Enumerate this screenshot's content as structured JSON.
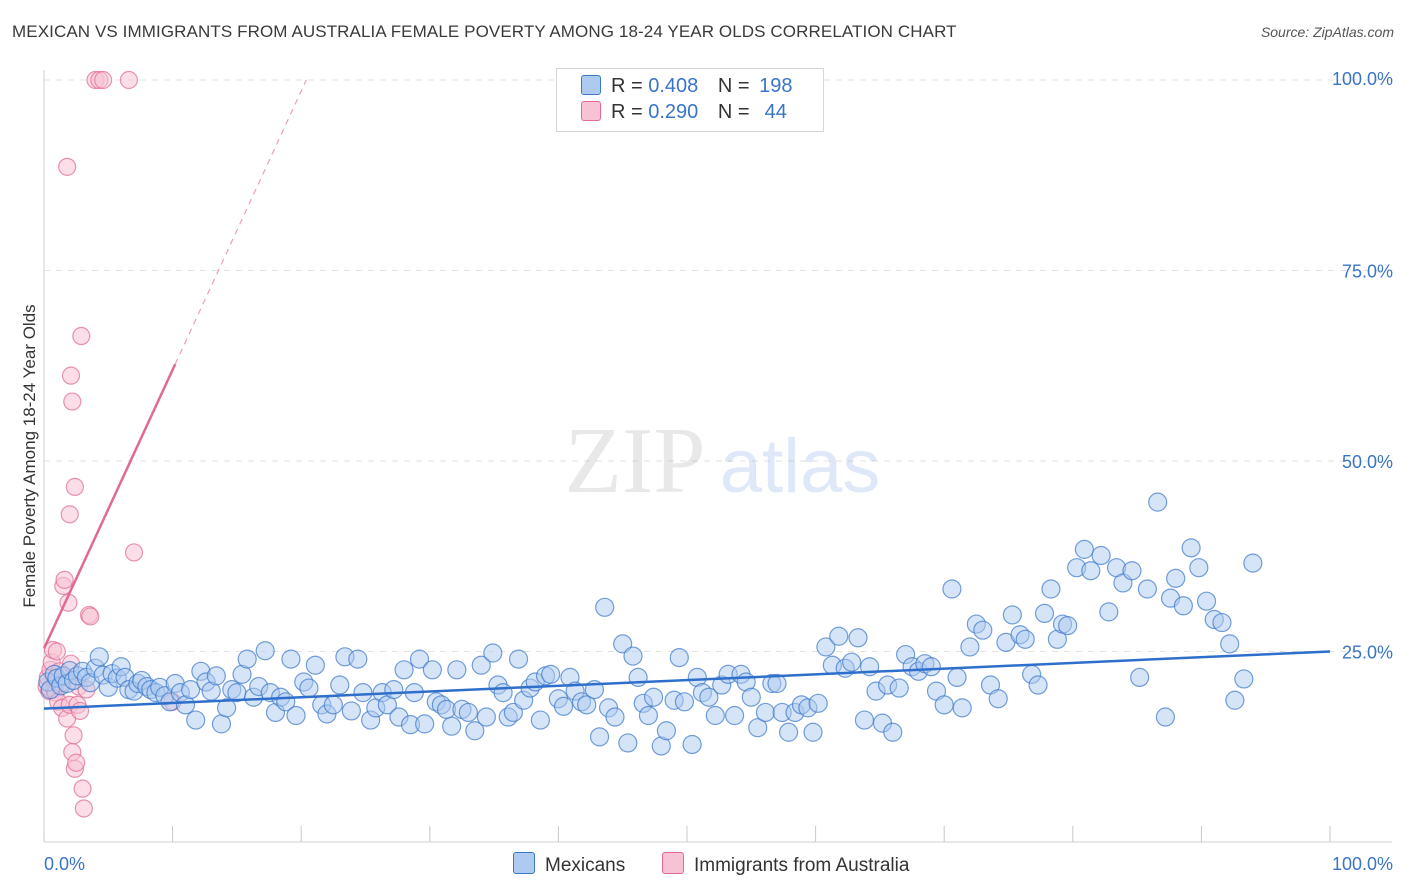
{
  "header": {
    "title": "MEXICAN VS IMMIGRANTS FROM AUSTRALIA FEMALE POVERTY AMONG 18-24 YEAR OLDS CORRELATION CHART",
    "source": "Source: ZipAtlas.com"
  },
  "watermark": {
    "zip": "ZIP",
    "atlas": "atlas"
  },
  "legend": {
    "mexicans": {
      "r_label": "R =",
      "r_value": "0.408",
      "n_label": "N =",
      "n_value": "198"
    },
    "australia": {
      "r_label": "R =",
      "r_value": "0.290",
      "n_label": "N =",
      "n_value": " 44"
    }
  },
  "bottom_legend": {
    "mexicans": "Mexicans",
    "australia": "Immigrants from Australia"
  },
  "colors": {
    "blue": "#3a78c9",
    "blue_fill": "#aecaf0",
    "pink": "#e06a93",
    "pink_fill": "#f7c2d3",
    "tick_text": "#3a74c9"
  },
  "chart_data": {
    "type": "scatter",
    "title": "MEXICAN VS IMMIGRANTS FROM AUSTRALIA FEMALE POVERTY AMONG 18-24 YEAR OLDS CORRELATION CHART",
    "xlabel": "",
    "ylabel": "Female Poverty Among 18-24 Year Olds",
    "xlim": [
      0,
      100
    ],
    "ylim": [
      0,
      100
    ],
    "x_tick_labels": [
      "0.0%",
      "100.0%"
    ],
    "y_tick_labels": [
      "25.0%",
      "50.0%",
      "75.0%",
      "100.0%"
    ],
    "y_ticks": [
      25,
      50,
      75,
      100
    ],
    "series": [
      {
        "name": "Mexicans",
        "r": 0.408,
        "n": 198,
        "trend": {
          "x": [
            0,
            100
          ],
          "y": [
            17.5,
            25.0
          ],
          "dashed_from": null
        },
        "points": [
          [
            0.3,
            21.0
          ],
          [
            0.5,
            20.0
          ],
          [
            0.8,
            22.0
          ],
          [
            1.0,
            21.5
          ],
          [
            1.3,
            20.5
          ],
          [
            1.5,
            21.8
          ],
          [
            1.8,
            20.8
          ],
          [
            2.0,
            22.5
          ],
          [
            2.3,
            21.2
          ],
          [
            2.6,
            21.8
          ],
          [
            3.0,
            22.4
          ],
          [
            3.3,
            21.6
          ],
          [
            3.6,
            20.9
          ],
          [
            4.0,
            22.8
          ],
          [
            4.3,
            24.3
          ],
          [
            4.6,
            21.9
          ],
          [
            5.0,
            20.3
          ],
          [
            5.3,
            22.1
          ],
          [
            5.7,
            21.5
          ],
          [
            6.0,
            23.0
          ],
          [
            6.3,
            21.6
          ],
          [
            6.6,
            20.0
          ],
          [
            7.0,
            19.8
          ],
          [
            7.3,
            20.8
          ],
          [
            7.6,
            21.2
          ],
          [
            8.0,
            20.4
          ],
          [
            8.3,
            20.0
          ],
          [
            8.7,
            19.6
          ],
          [
            9.0,
            20.3
          ],
          [
            9.4,
            19.2
          ],
          [
            9.8,
            18.4
          ],
          [
            10.2,
            20.8
          ],
          [
            10.6,
            19.6
          ],
          [
            11.0,
            18.0
          ],
          [
            11.4,
            20.0
          ],
          [
            11.8,
            16.0
          ],
          [
            12.2,
            22.4
          ],
          [
            12.6,
            21.0
          ],
          [
            13.0,
            19.8
          ],
          [
            13.4,
            21.8
          ],
          [
            13.8,
            15.5
          ],
          [
            14.2,
            17.6
          ],
          [
            14.6,
            20.0
          ],
          [
            15.0,
            19.6
          ],
          [
            15.4,
            22.0
          ],
          [
            15.8,
            24.0
          ],
          [
            16.3,
            19.0
          ],
          [
            16.7,
            20.4
          ],
          [
            17.2,
            25.1
          ],
          [
            17.6,
            19.6
          ],
          [
            18.0,
            17.0
          ],
          [
            18.4,
            19.0
          ],
          [
            18.8,
            18.4
          ],
          [
            19.2,
            24.0
          ],
          [
            19.6,
            16.6
          ],
          [
            20.2,
            21.0
          ],
          [
            20.6,
            20.2
          ],
          [
            21.1,
            23.2
          ],
          [
            21.6,
            18.0
          ],
          [
            22.0,
            16.8
          ],
          [
            22.5,
            18.0
          ],
          [
            23.0,
            20.6
          ],
          [
            23.4,
            24.3
          ],
          [
            23.9,
            17.2
          ],
          [
            24.4,
            24.0
          ],
          [
            24.8,
            19.6
          ],
          [
            25.4,
            16.0
          ],
          [
            25.8,
            17.6
          ],
          [
            26.3,
            19.6
          ],
          [
            26.7,
            18.0
          ],
          [
            27.2,
            20.0
          ],
          [
            27.6,
            16.4
          ],
          [
            28.0,
            22.6
          ],
          [
            28.5,
            15.4
          ],
          [
            28.8,
            19.6
          ],
          [
            29.2,
            24.0
          ],
          [
            29.6,
            15.5
          ],
          [
            30.2,
            22.6
          ],
          [
            30.5,
            18.4
          ],
          [
            30.9,
            18.0
          ],
          [
            31.3,
            17.4
          ],
          [
            31.7,
            15.2
          ],
          [
            32.1,
            22.6
          ],
          [
            32.5,
            17.4
          ],
          [
            33.0,
            17.0
          ],
          [
            33.5,
            14.6
          ],
          [
            34.0,
            23.2
          ],
          [
            34.4,
            16.4
          ],
          [
            34.9,
            24.8
          ],
          [
            35.3,
            20.6
          ],
          [
            35.7,
            19.6
          ],
          [
            36.1,
            16.4
          ],
          [
            36.5,
            17.0
          ],
          [
            36.9,
            24.0
          ],
          [
            37.3,
            18.6
          ],
          [
            37.8,
            20.2
          ],
          [
            38.2,
            21.0
          ],
          [
            38.6,
            16.0
          ],
          [
            39.0,
            21.8
          ],
          [
            39.4,
            22.0
          ],
          [
            40.0,
            18.8
          ],
          [
            40.4,
            17.8
          ],
          [
            40.9,
            21.6
          ],
          [
            41.3,
            19.8
          ],
          [
            41.8,
            18.4
          ],
          [
            42.2,
            18.0
          ],
          [
            42.8,
            20.0
          ],
          [
            43.2,
            13.8
          ],
          [
            43.6,
            30.8
          ],
          [
            43.9,
            17.6
          ],
          [
            44.4,
            16.4
          ],
          [
            45.0,
            26.0
          ],
          [
            45.4,
            13.0
          ],
          [
            45.8,
            24.4
          ],
          [
            46.2,
            21.6
          ],
          [
            46.6,
            18.2
          ],
          [
            47.0,
            16.6
          ],
          [
            47.4,
            19.0
          ],
          [
            48.0,
            12.6
          ],
          [
            48.4,
            14.6
          ],
          [
            49.0,
            18.6
          ],
          [
            49.4,
            24.2
          ],
          [
            49.8,
            18.4
          ],
          [
            50.4,
            12.8
          ],
          [
            50.8,
            21.6
          ],
          [
            51.2,
            19.6
          ],
          [
            51.7,
            19.0
          ],
          [
            52.2,
            16.6
          ],
          [
            52.7,
            20.6
          ],
          [
            53.2,
            22.0
          ],
          [
            53.7,
            16.6
          ],
          [
            54.2,
            22.0
          ],
          [
            54.6,
            21.0
          ],
          [
            55.0,
            19.0
          ],
          [
            55.5,
            15.0
          ],
          [
            56.1,
            17.0
          ],
          [
            56.6,
            20.8
          ],
          [
            57.0,
            20.8
          ],
          [
            57.4,
            17.0
          ],
          [
            57.9,
            14.4
          ],
          [
            58.4,
            17.0
          ],
          [
            58.9,
            18.0
          ],
          [
            59.4,
            17.6
          ],
          [
            59.8,
            14.4
          ],
          [
            60.2,
            18.2
          ],
          [
            60.8,
            25.6
          ],
          [
            61.3,
            23.2
          ],
          [
            61.8,
            27.0
          ],
          [
            62.3,
            22.8
          ],
          [
            62.8,
            23.6
          ],
          [
            63.3,
            26.8
          ],
          [
            63.8,
            16.0
          ],
          [
            64.2,
            23.0
          ],
          [
            64.7,
            19.8
          ],
          [
            65.2,
            15.6
          ],
          [
            65.6,
            20.6
          ],
          [
            66.0,
            14.4
          ],
          [
            66.5,
            20.2
          ],
          [
            67.0,
            24.6
          ],
          [
            67.5,
            23.0
          ],
          [
            68.0,
            22.4
          ],
          [
            68.5,
            23.4
          ],
          [
            69.0,
            23.0
          ],
          [
            69.4,
            19.8
          ],
          [
            70.0,
            18.0
          ],
          [
            70.6,
            33.2
          ],
          [
            71.0,
            21.6
          ],
          [
            71.4,
            17.6
          ],
          [
            72.0,
            25.6
          ],
          [
            72.5,
            28.6
          ],
          [
            73.0,
            27.8
          ],
          [
            73.6,
            20.6
          ],
          [
            74.2,
            18.8
          ],
          [
            74.8,
            26.2
          ],
          [
            75.3,
            29.8
          ],
          [
            75.9,
            27.2
          ],
          [
            76.3,
            26.6
          ],
          [
            76.8,
            22.0
          ],
          [
            77.3,
            20.6
          ],
          [
            77.8,
            30.0
          ],
          [
            78.3,
            33.2
          ],
          [
            78.8,
            26.6
          ],
          [
            79.2,
            28.6
          ],
          [
            79.6,
            28.4
          ],
          [
            80.3,
            36.0
          ],
          [
            80.9,
            38.4
          ],
          [
            81.4,
            35.6
          ],
          [
            82.2,
            37.6
          ],
          [
            82.8,
            30.2
          ],
          [
            83.4,
            36.0
          ],
          [
            83.9,
            34.0
          ],
          [
            84.6,
            35.6
          ],
          [
            85.2,
            21.6
          ],
          [
            85.8,
            33.2
          ],
          [
            86.6,
            44.6
          ],
          [
            87.2,
            16.4
          ],
          [
            87.6,
            32.0
          ],
          [
            88.0,
            34.6
          ],
          [
            88.6,
            31.0
          ],
          [
            89.2,
            38.6
          ],
          [
            89.8,
            36.0
          ],
          [
            90.4,
            31.6
          ],
          [
            91.0,
            29.2
          ],
          [
            91.6,
            28.8
          ],
          [
            92.2,
            26.0
          ],
          [
            92.6,
            18.6
          ],
          [
            93.3,
            21.4
          ],
          [
            94.0,
            36.6
          ]
        ]
      },
      {
        "name": "Immigrants from Australia",
        "r": 0.29,
        "n": 44,
        "trend": {
          "x": [
            0,
            20.4
          ],
          "y": [
            25.4,
            100.0
          ],
          "solid_until_x": 10.2
        },
        "points": [
          [
            0.2,
            20.4
          ],
          [
            0.3,
            21.6
          ],
          [
            0.4,
            19.8
          ],
          [
            0.5,
            22.6
          ],
          [
            0.6,
            23.6
          ],
          [
            0.7,
            25.2
          ],
          [
            0.8,
            20.0
          ],
          [
            0.9,
            19.6
          ],
          [
            1.0,
            21.0
          ],
          [
            1.1,
            18.4
          ],
          [
            1.2,
            22.4
          ],
          [
            1.3,
            20.8
          ],
          [
            1.4,
            17.6
          ],
          [
            1.5,
            33.6
          ],
          [
            1.6,
            34.4
          ],
          [
            1.8,
            16.2
          ],
          [
            2.0,
            18.0
          ],
          [
            2.1,
            23.4
          ],
          [
            2.2,
            11.8
          ],
          [
            2.3,
            14.0
          ],
          [
            2.4,
            9.6
          ],
          [
            2.5,
            10.4
          ],
          [
            2.6,
            18.0
          ],
          [
            2.7,
            20.4
          ],
          [
            2.8,
            17.2
          ],
          [
            3.0,
            7.0
          ],
          [
            3.1,
            4.4
          ],
          [
            3.3,
            20.0
          ],
          [
            3.5,
            29.8
          ],
          [
            3.6,
            29.6
          ],
          [
            1.9,
            31.4
          ],
          [
            2.0,
            43.0
          ],
          [
            2.2,
            57.8
          ],
          [
            2.1,
            61.2
          ],
          [
            2.4,
            46.6
          ],
          [
            2.9,
            66.4
          ],
          [
            1.8,
            88.6
          ],
          [
            4.0,
            100.0
          ],
          [
            4.3,
            100.0
          ],
          [
            4.6,
            100.0
          ],
          [
            6.6,
            100.0
          ],
          [
            7.0,
            38.0
          ],
          [
            10.0,
            18.4
          ],
          [
            1.0,
            25.0
          ]
        ]
      }
    ]
  }
}
